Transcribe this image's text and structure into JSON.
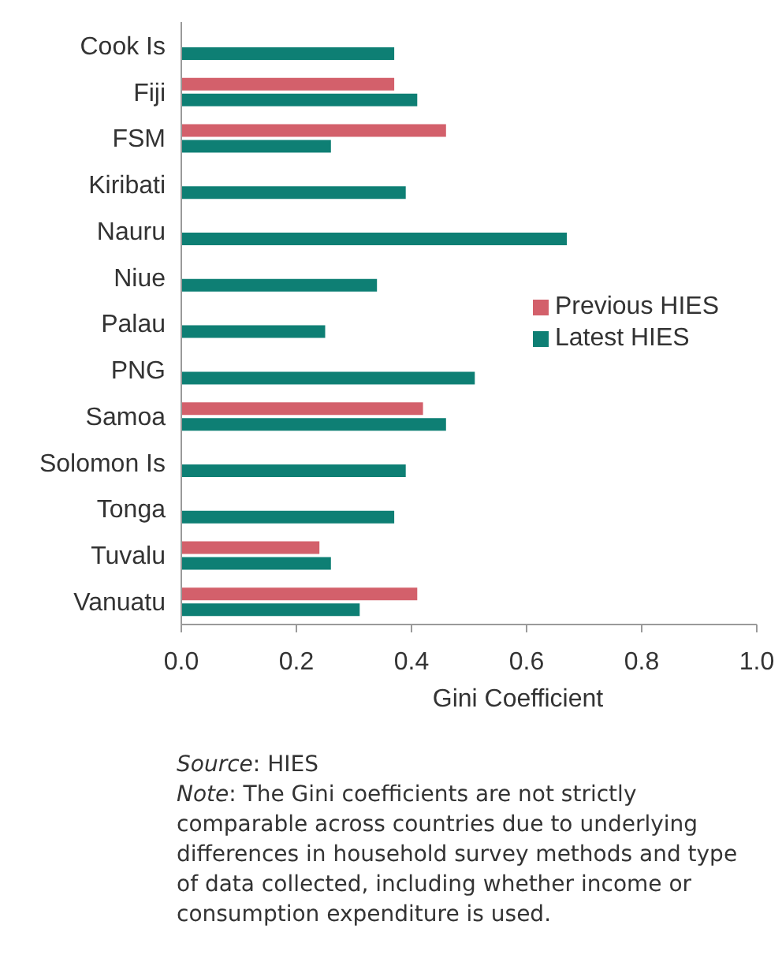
{
  "chart_data": {
    "type": "bar",
    "orientation": "horizontal",
    "categories": [
      "Cook Is",
      "Fiji",
      "FSM",
      "Kiribati",
      "Nauru",
      "Niue",
      "Palau",
      "PNG",
      "Samoa",
      "Solomon Is",
      "Tonga",
      "Tuvalu",
      "Vanuatu"
    ],
    "series": [
      {
        "name": "Previous HIES",
        "color": "#d3606b",
        "values": [
          null,
          0.37,
          0.46,
          null,
          null,
          null,
          null,
          null,
          0.42,
          null,
          null,
          0.24,
          0.41
        ]
      },
      {
        "name": "Latest HIES",
        "color": "#0e7f74",
        "values": [
          0.37,
          0.41,
          0.26,
          0.39,
          0.67,
          0.34,
          0.25,
          0.51,
          0.46,
          0.39,
          0.37,
          0.26,
          0.31
        ]
      }
    ],
    "xlabel": "Gini Coefficient",
    "xlim": [
      0,
      1
    ],
    "xticks": [
      {
        "value": 0,
        "label": "0.0"
      },
      {
        "value": 0.2,
        "label": "0.2"
      },
      {
        "value": 0.4,
        "label": "0.4"
      },
      {
        "value": 0.6,
        "label": "0.6"
      },
      {
        "value": 0.8,
        "label": "0.8"
      },
      {
        "value": 1,
        "label": "1.0"
      }
    ],
    "legend": "right",
    "annotations": [
      "Source: HIES",
      "Note: The Gini coefficients are not strictly comparable across countries due to underlying differences in household survey methods and type of data collected, including whether income or consumption expenditure is used."
    ]
  }
}
